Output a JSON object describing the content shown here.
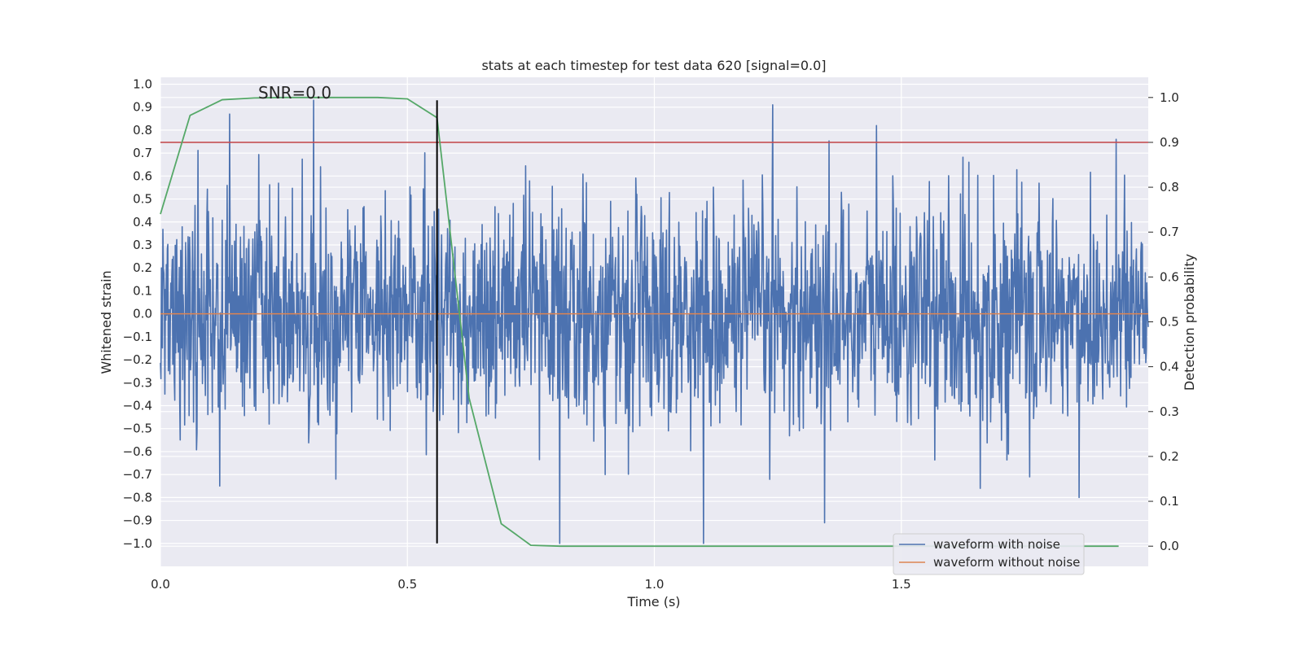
{
  "chart_data": {
    "type": "line",
    "title": "stats at each timestep for test data 620 [signal=0.0]",
    "xlabel": "Time (s)",
    "ylabel": "Whitened strain",
    "y2label": "Detection probability",
    "annotation": "SNR=0.0",
    "xlim": [
      0.0,
      2.0
    ],
    "ylim": [
      -1.1,
      1.03
    ],
    "y2lim": [
      -0.045,
      1.045
    ],
    "xticks": [
      "0.0",
      "0.5",
      "1.0",
      "1.5"
    ],
    "yticks": [
      "1.0",
      "0.9",
      "0.8",
      "0.7",
      "0.6",
      "0.5",
      "0.4",
      "0.3",
      "0.2",
      "0.1",
      "0.0",
      "-0.1",
      "-0.2",
      "-0.3",
      "-0.4",
      "-0.5",
      "-0.6",
      "-0.7",
      "-0.8",
      "-0.9",
      "-1.0"
    ],
    "y2ticks": [
      "1.0",
      "0.9",
      "0.8",
      "0.7",
      "0.6",
      "0.5",
      "0.4",
      "0.3",
      "0.2",
      "0.1",
      "0.0"
    ],
    "grid": true,
    "legend_position": "lower-right",
    "series": [
      {
        "name": "waveform with noise",
        "color": "#4c72b0",
        "axis": "left",
        "n_points": 2000,
        "x_range": [
          0.0,
          2.0
        ],
        "y_min": -1.0,
        "y_max": 0.93,
        "spikes": [
          {
            "x": 0.31,
            "y": 0.93
          },
          {
            "x": 0.14,
            "y": 0.87
          },
          {
            "x": 1.24,
            "y": 0.91
          },
          {
            "x": 1.1,
            "y": -1.0
          },
          {
            "x": 1.345,
            "y": -0.91
          },
          {
            "x": 1.45,
            "y": 0.82
          },
          {
            "x": 1.935,
            "y": 0.76
          },
          {
            "x": 0.12,
            "y": -0.75
          },
          {
            "x": 0.355,
            "y": -0.72
          },
          {
            "x": 1.66,
            "y": -0.76
          },
          {
            "x": 1.86,
            "y": -0.8
          },
          {
            "x": 1.76,
            "y": -0.71
          },
          {
            "x": 0.9,
            "y": -0.7
          }
        ]
      },
      {
        "name": "waveform without noise",
        "color": "#dd8452",
        "axis": "left",
        "x": [
          0.0,
          2.0
        ],
        "y": [
          0.0,
          0.0
        ]
      },
      {
        "name": "detection probability",
        "color": "#55a868",
        "axis": "right",
        "x": [
          0.0,
          0.06,
          0.125,
          0.19,
          0.25,
          0.31,
          0.375,
          0.44,
          0.5,
          0.56,
          0.625,
          0.69,
          0.75,
          0.81,
          0.875,
          1.0,
          1.25,
          1.5,
          1.75,
          1.94
        ],
        "y": [
          0.74,
          0.96,
          0.995,
          0.999,
          1.0,
          1.0,
          1.0,
          1.0,
          0.997,
          0.955,
          0.33,
          0.05,
          0.002,
          0.0,
          0.0,
          0.0,
          0.0,
          0.0,
          0.0,
          0.0
        ]
      }
    ],
    "threshold": {
      "y2": 0.9,
      "color": "#c44e52"
    },
    "marker_line": {
      "x": 0.56,
      "y_from": -1.0,
      "y_to": 0.93,
      "color": "#000000"
    }
  }
}
